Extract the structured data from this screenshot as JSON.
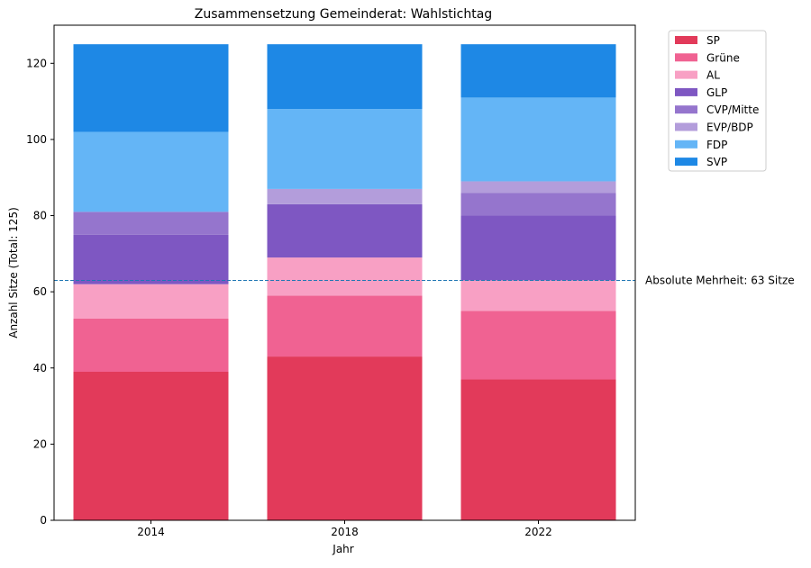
{
  "chart_data": {
    "type": "bar",
    "stacked": true,
    "title": "Zusammensetzung Gemeinderat: Wahlstichtag",
    "xlabel": "Jahr",
    "ylabel": "Anzahl Sitze (Total: 125)",
    "categories": [
      "2014",
      "2018",
      "2022"
    ],
    "ylim": [
      0,
      130
    ],
    "yticks": [
      0,
      20,
      40,
      60,
      80,
      100,
      120
    ],
    "legend_position": "outside-top-right",
    "series": [
      {
        "name": "SP",
        "color": "#e23a5a",
        "values": [
          39,
          43,
          37
        ]
      },
      {
        "name": "Grüne",
        "color": "#f06292",
        "values": [
          14,
          16,
          18
        ]
      },
      {
        "name": "AL",
        "color": "#f8a0c4",
        "values": [
          9,
          10,
          8
        ]
      },
      {
        "name": "GLP",
        "color": "#7e57c2",
        "values": [
          13,
          14,
          17
        ]
      },
      {
        "name": "CVP/Mitte",
        "color": "#9575cd",
        "values": [
          6,
          0,
          6
        ]
      },
      {
        "name": "EVP/BDP",
        "color": "#b39ddb",
        "values": [
          0,
          4,
          3
        ]
      },
      {
        "name": "FDP",
        "color": "#64b5f6",
        "values": [
          21,
          21,
          22
        ]
      },
      {
        "name": "SVP",
        "color": "#1e88e5",
        "values": [
          23,
          17,
          14
        ]
      }
    ],
    "reference_line": {
      "value": 63,
      "label": "Absolute Mehrheit: 63 Sitze",
      "color": "#1f77b4",
      "style": "dashed"
    }
  }
}
